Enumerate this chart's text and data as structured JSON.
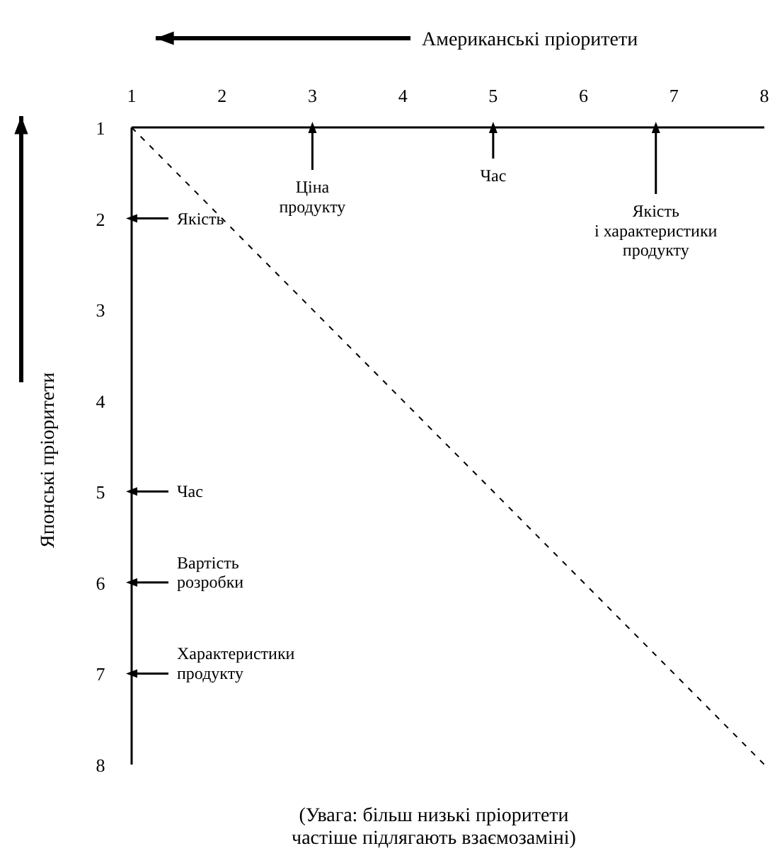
{
  "chart_data": {
    "type": "line",
    "xlabel": "Американські пріоритети",
    "ylabel": "Японські пріоритети",
    "xlim": [
      1,
      8
    ],
    "xticks": [
      1,
      2,
      3,
      4,
      5,
      6,
      7,
      8
    ],
    "ylim": [
      8,
      1
    ],
    "yticks": [
      1,
      2,
      3,
      4,
      5,
      6,
      7,
      8
    ],
    "series": [
      {
        "color": "#000000",
        "line_style": "dashed",
        "x": [
          1,
          8
        ],
        "values": [
          1,
          8
        ]
      },
      {
        "type": "scatter",
        "marker": "triangle",
        "color": "#000000",
        "x": [
          3,
          5,
          6.8
        ],
        "values": [
          1,
          1,
          1
        ]
      },
      {
        "type": "scatter",
        "marker": "triangle",
        "color": "#000000",
        "x": [
          1,
          1,
          1,
          1
        ],
        "values": [
          2,
          5,
          6,
          7
        ]
      }
    ],
    "annotations": [
      {
        "text": "Ціна\nпродукту",
        "x": 3,
        "y": 1
      },
      {
        "text": "Час",
        "x": 5,
        "y": 1
      },
      {
        "text": "Якість\nі характеристики\nпродукту",
        "x": 6.8,
        "y": 1
      },
      {
        "text": "Якість",
        "x": 1,
        "y": 2
      },
      {
        "text": "Час",
        "x": 1,
        "y": 5
      },
      {
        "text": "Вартість\nрозробки",
        "x": 1,
        "y": 6
      },
      {
        "text": "Характеристики\nпродукту",
        "x": 1,
        "y": 7
      },
      "(Увага: більш низькі пріоритети\nчастіше підлягають взаємозаміні)"
    ]
  }
}
